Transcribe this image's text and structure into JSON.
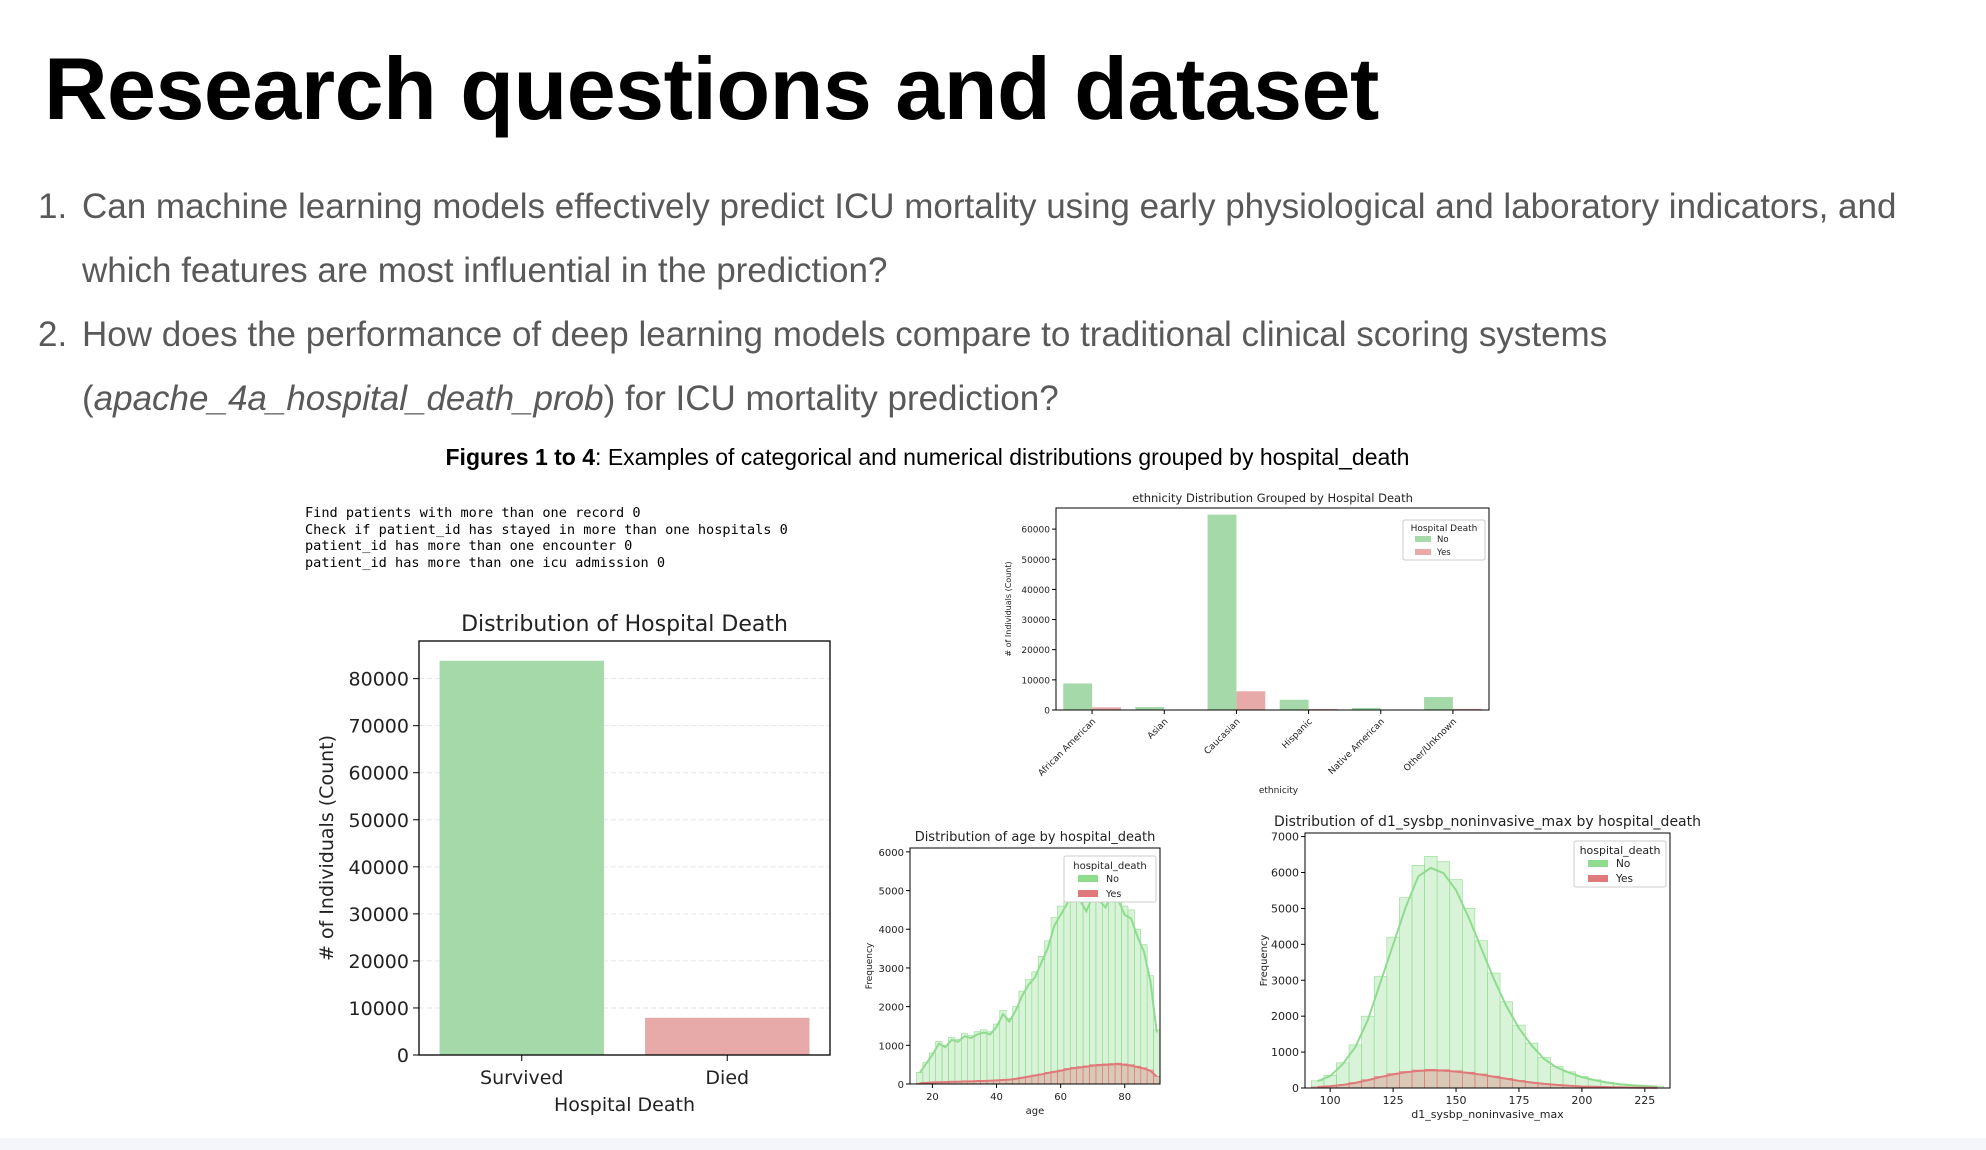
{
  "slide": {
    "title": "Research questions and dataset",
    "questions": [
      {
        "number": "1.",
        "lines": [
          "Can machine learning models effectively predict ICU mortality using early physiological and laboratory indicators, and",
          "which features are most influential in the prediction?"
        ]
      },
      {
        "number": "2.",
        "pre": "How does the performance of deep learning models compare to traditional clinical scoring systems",
        "open": "(",
        "italic": "apache_4a_hospital_death_prob",
        "post": ") for ICU mortality prediction?"
      }
    ],
    "caption": {
      "bold": "Figures 1 to 4",
      "rest": ": Examples of categorical and numerical distributions grouped by hospital_death"
    },
    "console_lines": [
      "Find patients with more than one record 0",
      "Check if patient_id has stayed in more than one hospitals 0",
      "patient_id has more than one encounter 0",
      "patient_id has more than one icu admission 0"
    ]
  },
  "colors": {
    "no": "#a6d9a9",
    "yes": "#e8a9a9",
    "no_line": "#8fdc8f",
    "yes_line": "#e07a7a"
  },
  "chart_data": [
    {
      "type": "bar",
      "title": "Distribution of Hospital Death",
      "xlabel": "Hospital Death",
      "ylabel": "# of Individuals (Count)",
      "categories": [
        "Survived",
        "Died"
      ],
      "values": [
        83800,
        7900
      ],
      "ylim": [
        0,
        88000
      ],
      "yticks": [
        0,
        10000,
        20000,
        30000,
        40000,
        50000,
        60000,
        70000,
        80000
      ],
      "grid": true,
      "colors": [
        "#a6d9a9",
        "#e8a9a9"
      ]
    },
    {
      "type": "bar",
      "title": "ethnicity Distribution Grouped by Hospital Death",
      "xlabel": "ethnicity",
      "ylabel": "# of Individuals (Count)",
      "categories": [
        "African American",
        "Asian",
        "Caucasian",
        "Hispanic",
        "Native American",
        "Other/Unknown"
      ],
      "series": [
        {
          "name": "No",
          "values": [
            8800,
            1000,
            64800,
            3400,
            700,
            4300
          ]
        },
        {
          "name": "Yes",
          "values": [
            900,
            150,
            6200,
            350,
            80,
            380
          ]
        }
      ],
      "ylim": [
        0,
        67000
      ],
      "yticks": [
        0,
        10000,
        20000,
        30000,
        40000,
        50000,
        60000
      ],
      "legend": {
        "title": "Hospital Death",
        "placement": "top-right"
      }
    },
    {
      "type": "area",
      "title": "Distribution of age by hospital_death",
      "xlabel": "age",
      "ylabel": "Frequency",
      "xticks": [
        20,
        40,
        60,
        80
      ],
      "yticks": [
        0,
        1000,
        2000,
        3000,
        4000,
        5000,
        6000
      ],
      "xlim": [
        13,
        91
      ],
      "ylim": [
        0,
        6100
      ],
      "legend": {
        "title": "hospital_death",
        "placement": "top-right"
      },
      "series": [
        {
          "name": "No",
          "x": [
            16,
            18,
            20,
            22,
            24,
            26,
            28,
            30,
            32,
            34,
            36,
            38,
            40,
            42,
            44,
            46,
            48,
            50,
            52,
            54,
            56,
            58,
            60,
            62,
            64,
            66,
            68,
            70,
            72,
            74,
            76,
            78,
            80,
            82,
            84,
            86,
            88,
            90
          ],
          "values": [
            300,
            550,
            800,
            1100,
            1000,
            1200,
            1150,
            1300,
            1250,
            1350,
            1400,
            1350,
            1550,
            1900,
            1700,
            2000,
            2400,
            2700,
            2900,
            3300,
            3700,
            4300,
            4600,
            4900,
            5300,
            5000,
            4700,
            5100,
            5000,
            4800,
            5200,
            5000,
            4600,
            4500,
            4000,
            3600,
            2800,
            1400
          ]
        },
        {
          "name": "Yes",
          "x": [
            16,
            18,
            20,
            22,
            24,
            26,
            28,
            30,
            32,
            34,
            36,
            38,
            40,
            42,
            44,
            46,
            48,
            50,
            52,
            54,
            56,
            58,
            60,
            62,
            64,
            66,
            68,
            70,
            72,
            74,
            76,
            78,
            80,
            82,
            84,
            86,
            88,
            90
          ],
          "values": [
            20,
            30,
            40,
            50,
            50,
            60,
            60,
            70,
            70,
            80,
            80,
            90,
            100,
            110,
            120,
            140,
            170,
            200,
            230,
            260,
            300,
            330,
            360,
            400,
            430,
            450,
            470,
            500,
            510,
            520,
            530,
            540,
            520,
            500,
            460,
            420,
            360,
            200
          ]
        }
      ]
    },
    {
      "type": "area",
      "title": "Distribution of d1_sysbp_noninvasive_max by hospital_death",
      "xlabel": "d1_sysbp_noninvasive_max",
      "ylabel": "Frequency",
      "xticks": [
        100,
        125,
        150,
        175,
        200,
        225
      ],
      "yticks": [
        0,
        1000,
        2000,
        3000,
        4000,
        5000,
        6000,
        7000
      ],
      "xlim": [
        90,
        235
      ],
      "ylim": [
        0,
        7100
      ],
      "legend": {
        "title": "hospital_death",
        "placement": "top-right"
      },
      "series": [
        {
          "name": "No",
          "x": [
            95,
            100,
            105,
            110,
            115,
            120,
            125,
            130,
            135,
            140,
            145,
            150,
            155,
            160,
            165,
            170,
            175,
            180,
            185,
            190,
            195,
            200,
            205,
            210,
            215,
            220,
            225,
            230
          ],
          "values": [
            200,
            350,
            700,
            1200,
            2000,
            3100,
            4200,
            5300,
            6200,
            6450,
            6300,
            5800,
            5000,
            4100,
            3200,
            2400,
            1750,
            1250,
            850,
            600,
            450,
            320,
            230,
            160,
            110,
            80,
            60,
            40
          ]
        },
        {
          "name": "Yes",
          "x": [
            95,
            100,
            105,
            110,
            115,
            120,
            125,
            130,
            135,
            140,
            145,
            150,
            155,
            160,
            165,
            170,
            175,
            180,
            185,
            190,
            195,
            200,
            205,
            210,
            215,
            220,
            225,
            230
          ],
          "values": [
            30,
            50,
            90,
            150,
            230,
            320,
            400,
            460,
            500,
            520,
            510,
            480,
            440,
            390,
            330,
            270,
            210,
            160,
            120,
            90,
            65,
            45,
            35,
            25,
            18,
            12,
            8,
            5
          ]
        }
      ]
    }
  ]
}
